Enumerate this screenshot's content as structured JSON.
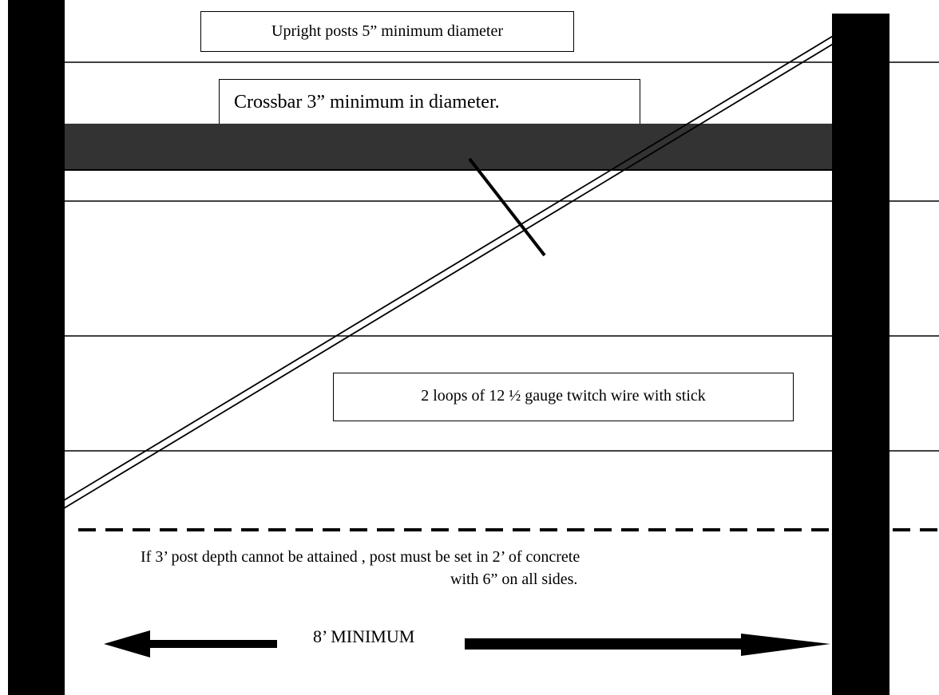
{
  "labels": {
    "upright": "Upright posts 5” minimum diameter",
    "crossbar": "Crossbar 3” minimum in diameter.",
    "twitch_wire": "2 loops of 12 ½ gauge twitch wire with stick",
    "concrete_note_line1": "If 3’ post depth cannot be attained , post must be set in 2’ of concrete",
    "concrete_note_line2": "with 6” on all sides.",
    "span_dimension": "8’ MINIMUM"
  },
  "colors": {
    "post": "#000000",
    "crossbar": "#333333",
    "line": "#000000",
    "background": "#ffffff"
  }
}
